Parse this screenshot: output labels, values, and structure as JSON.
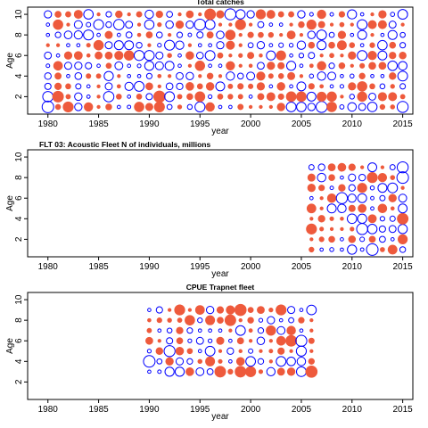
{
  "chart_data": [
    {
      "type": "scatter",
      "title": "Total catches",
      "xlabel": "year",
      "ylabel": "Age",
      "xlim": [
        1978,
        2016
      ],
      "ylim": [
        0.3,
        10.7
      ],
      "x_ticks": [
        "1980",
        "1985",
        "1990",
        "1995",
        "2000",
        "2005",
        "2010",
        "2015"
      ],
      "y_ticks": [
        "2",
        "4",
        "6",
        "8",
        "10"
      ],
      "series": [
        {
          "year_start": 1980,
          "year_end": 2015,
          "age_start": 1,
          "age_end": 10,
          "encoding": "bubble: blue open = positive residual, red filled = negative residual"
        }
      ],
      "highlights": [
        {
          "x": 1980,
          "y": 1,
          "v": 1.0
        },
        {
          "x": 1980,
          "y": 2,
          "v": 0.8
        },
        {
          "x": 1981,
          "y": 2,
          "v": -0.9
        },
        {
          "x": 1982,
          "y": 1,
          "v": -0.8
        },
        {
          "x": 1986,
          "y": 2,
          "v": 0.8
        },
        {
          "x": 1987,
          "y": 9,
          "v": 0.8
        },
        {
          "x": 1991,
          "y": 2,
          "v": -1.0
        },
        {
          "x": 1991,
          "y": 1,
          "v": -0.8
        },
        {
          "x": 1995,
          "y": 9,
          "v": 0.9
        },
        {
          "x": 1996,
          "y": 10,
          "v": -0.9
        },
        {
          "x": 1998,
          "y": 10,
          "v": 0.9
        },
        {
          "x": 1999,
          "y": 9,
          "v": -0.8
        },
        {
          "x": 2007,
          "y": 1,
          "v": 0.9
        },
        {
          "x": 2015,
          "y": 1,
          "v": 0.9
        }
      ]
    },
    {
      "type": "scatter",
      "title": "FLT 03: Acoustic Fleet   N of individuals, millions",
      "xlabel": "year",
      "ylabel": "Age",
      "xlim": [
        1978,
        2016
      ],
      "ylim": [
        0.3,
        10.7
      ],
      "x_ticks": [
        "1980",
        "1985",
        "1990",
        "1995",
        "2000",
        "2005",
        "2010",
        "2015"
      ],
      "y_ticks": [
        "2",
        "4",
        "6",
        "8",
        "10"
      ],
      "series": [
        {
          "year_start": 2006,
          "year_end": 2015,
          "age_start": 1,
          "age_end": 9,
          "encoding": "bubble: blue open = positive residual, red filled = negative residual"
        }
      ],
      "highlights": [
        {
          "x": 2015,
          "y": 9,
          "v": 0.9
        },
        {
          "x": 2015,
          "y": 8,
          "v": 1.0
        },
        {
          "x": 2012,
          "y": 1,
          "v": 1.0
        },
        {
          "x": 2011,
          "y": 3,
          "v": 0.9
        },
        {
          "x": 2015,
          "y": 4,
          "v": -0.9
        },
        {
          "x": 2009,
          "y": 6,
          "v": 0.9
        },
        {
          "x": 2012,
          "y": 8,
          "v": -0.8
        },
        {
          "x": 2006,
          "y": 3,
          "v": -0.8
        }
      ]
    },
    {
      "type": "scatter",
      "title": "CPUE Trapnet fleet",
      "xlabel": "year",
      "ylabel": "Age",
      "xlim": [
        1978,
        2016
      ],
      "ylim": [
        0.3,
        10.7
      ],
      "x_ticks": [
        "1980",
        "1985",
        "1990",
        "1995",
        "2000",
        "2005",
        "2010",
        "2015"
      ],
      "y_ticks": [
        "2",
        "4",
        "6",
        "8",
        "10"
      ],
      "series": [
        {
          "year_start": 1990,
          "year_end": 2006,
          "age_start": 3,
          "age_end": 9,
          "encoding": "bubble: blue open = positive residual, red filled = negative residual"
        }
      ],
      "highlights": [
        {
          "x": 1990,
          "y": 4,
          "v": 1.0
        },
        {
          "x": 1992,
          "y": 5,
          "v": 0.9
        },
        {
          "x": 1997,
          "y": 3,
          "v": -0.9
        },
        {
          "x": 1999,
          "y": 3,
          "v": -0.9
        },
        {
          "x": 2000,
          "y": 3,
          "v": -0.8
        },
        {
          "x": 2006,
          "y": 3,
          "v": -1.0
        },
        {
          "x": 1999,
          "y": 9,
          "v": -1.0
        },
        {
          "x": 1998,
          "y": 8,
          "v": -0.9
        },
        {
          "x": 2005,
          "y": 6,
          "v": 0.9
        },
        {
          "x": 2004,
          "y": 6,
          "v": -0.9
        },
        {
          "x": 1993,
          "y": 9,
          "v": -0.8
        },
        {
          "x": 2003,
          "y": 9,
          "v": -0.8
        }
      ]
    }
  ],
  "colors": {
    "positive": "#0000ff",
    "negative": "#ee5a3c",
    "axis": "#000000"
  }
}
